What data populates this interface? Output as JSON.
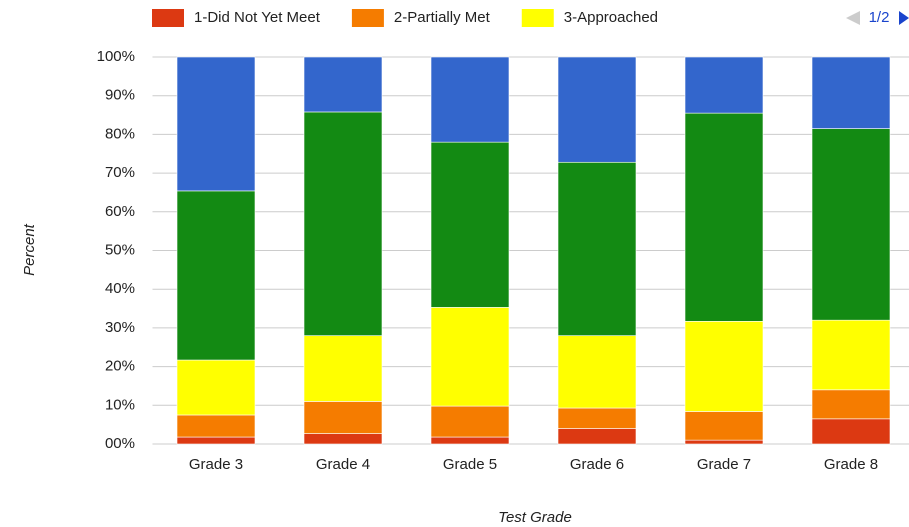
{
  "chart_data": {
    "type": "stacked_bar",
    "x_label": "Test Grade",
    "y_label": "Percent",
    "legend_page": "1/2",
    "categories": [
      "Grade 3",
      "Grade 4",
      "Grade 5",
      "Grade 6",
      "Grade 7",
      "Grade 8"
    ],
    "series": [
      {
        "name": "1-Did Not Yet Meet",
        "color": "#dc3912",
        "values": [
          1.8,
          2.7,
          1.8,
          4,
          1,
          6.5
        ]
      },
      {
        "name": "2-Partially Met",
        "color": "#f57c00",
        "values": [
          5.7,
          8.3,
          8,
          5.3,
          7.4,
          7.5
        ]
      },
      {
        "name": "3-Approached",
        "color": "#ffff00",
        "values": [
          14.2,
          17,
          25.5,
          18.7,
          23.3,
          18
        ]
      },
      {
        "color": "#138a13",
        "values": [
          43.7,
          57.8,
          42.7,
          44.8,
          53.8,
          49.5
        ]
      },
      {
        "color": "#3366cc",
        "values": [
          34.6,
          14.2,
          22,
          27.2,
          14.5,
          18.5
        ]
      }
    ],
    "ylim": [
      0,
      100
    ],
    "yticks": [
      {
        "value": 0,
        "label": "00%"
      },
      {
        "value": 10,
        "label": "10%"
      },
      {
        "value": 20,
        "label": "20%"
      },
      {
        "value": 30,
        "label": "30%"
      },
      {
        "value": 40,
        "label": "40%"
      },
      {
        "value": 50,
        "label": "50%"
      },
      {
        "value": 60,
        "label": "60%"
      },
      {
        "value": 70,
        "label": "70%"
      },
      {
        "value": 80,
        "label": "80%"
      },
      {
        "value": 90,
        "label": "90%"
      },
      {
        "value": 100,
        "label": "100%"
      }
    ],
    "grid": true
  }
}
